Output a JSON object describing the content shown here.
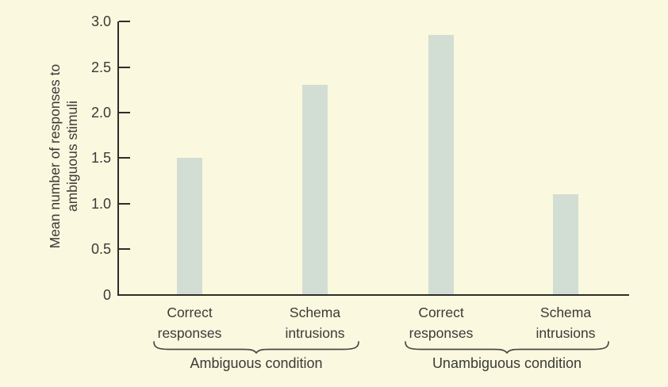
{
  "chart_data": {
    "type": "bar",
    "title": "",
    "ylabel_line1": "Mean number of responses to",
    "ylabel_line2": "ambiguous stimuli",
    "xlabel": "",
    "ylim": [
      0,
      3.0
    ],
    "yticks": [
      "0",
      "0.5",
      "1.0",
      "1.5",
      "2.0",
      "2.5",
      "3.0"
    ],
    "grid": "off",
    "legend": "none",
    "groups": [
      {
        "label": "Ambiguous condition",
        "bars": [
          {
            "category_line1": "Correct",
            "category_line2": "responses",
            "value": 1.5
          },
          {
            "category_line1": "Schema",
            "category_line2": "intrusions",
            "value": 2.3
          }
        ]
      },
      {
        "label": "Unambiguous condition",
        "bars": [
          {
            "category_line1": "Correct",
            "category_line2": "responses",
            "value": 2.85
          },
          {
            "category_line1": "Schema",
            "category_line2": "intrusions",
            "value": 1.1
          }
        ]
      }
    ],
    "colors": {
      "background": "#faf8de",
      "bar_fill": "#d2ded3",
      "axis": "#2e2d2b",
      "text": "#3b3a38",
      "brace": "#4a4947"
    }
  }
}
